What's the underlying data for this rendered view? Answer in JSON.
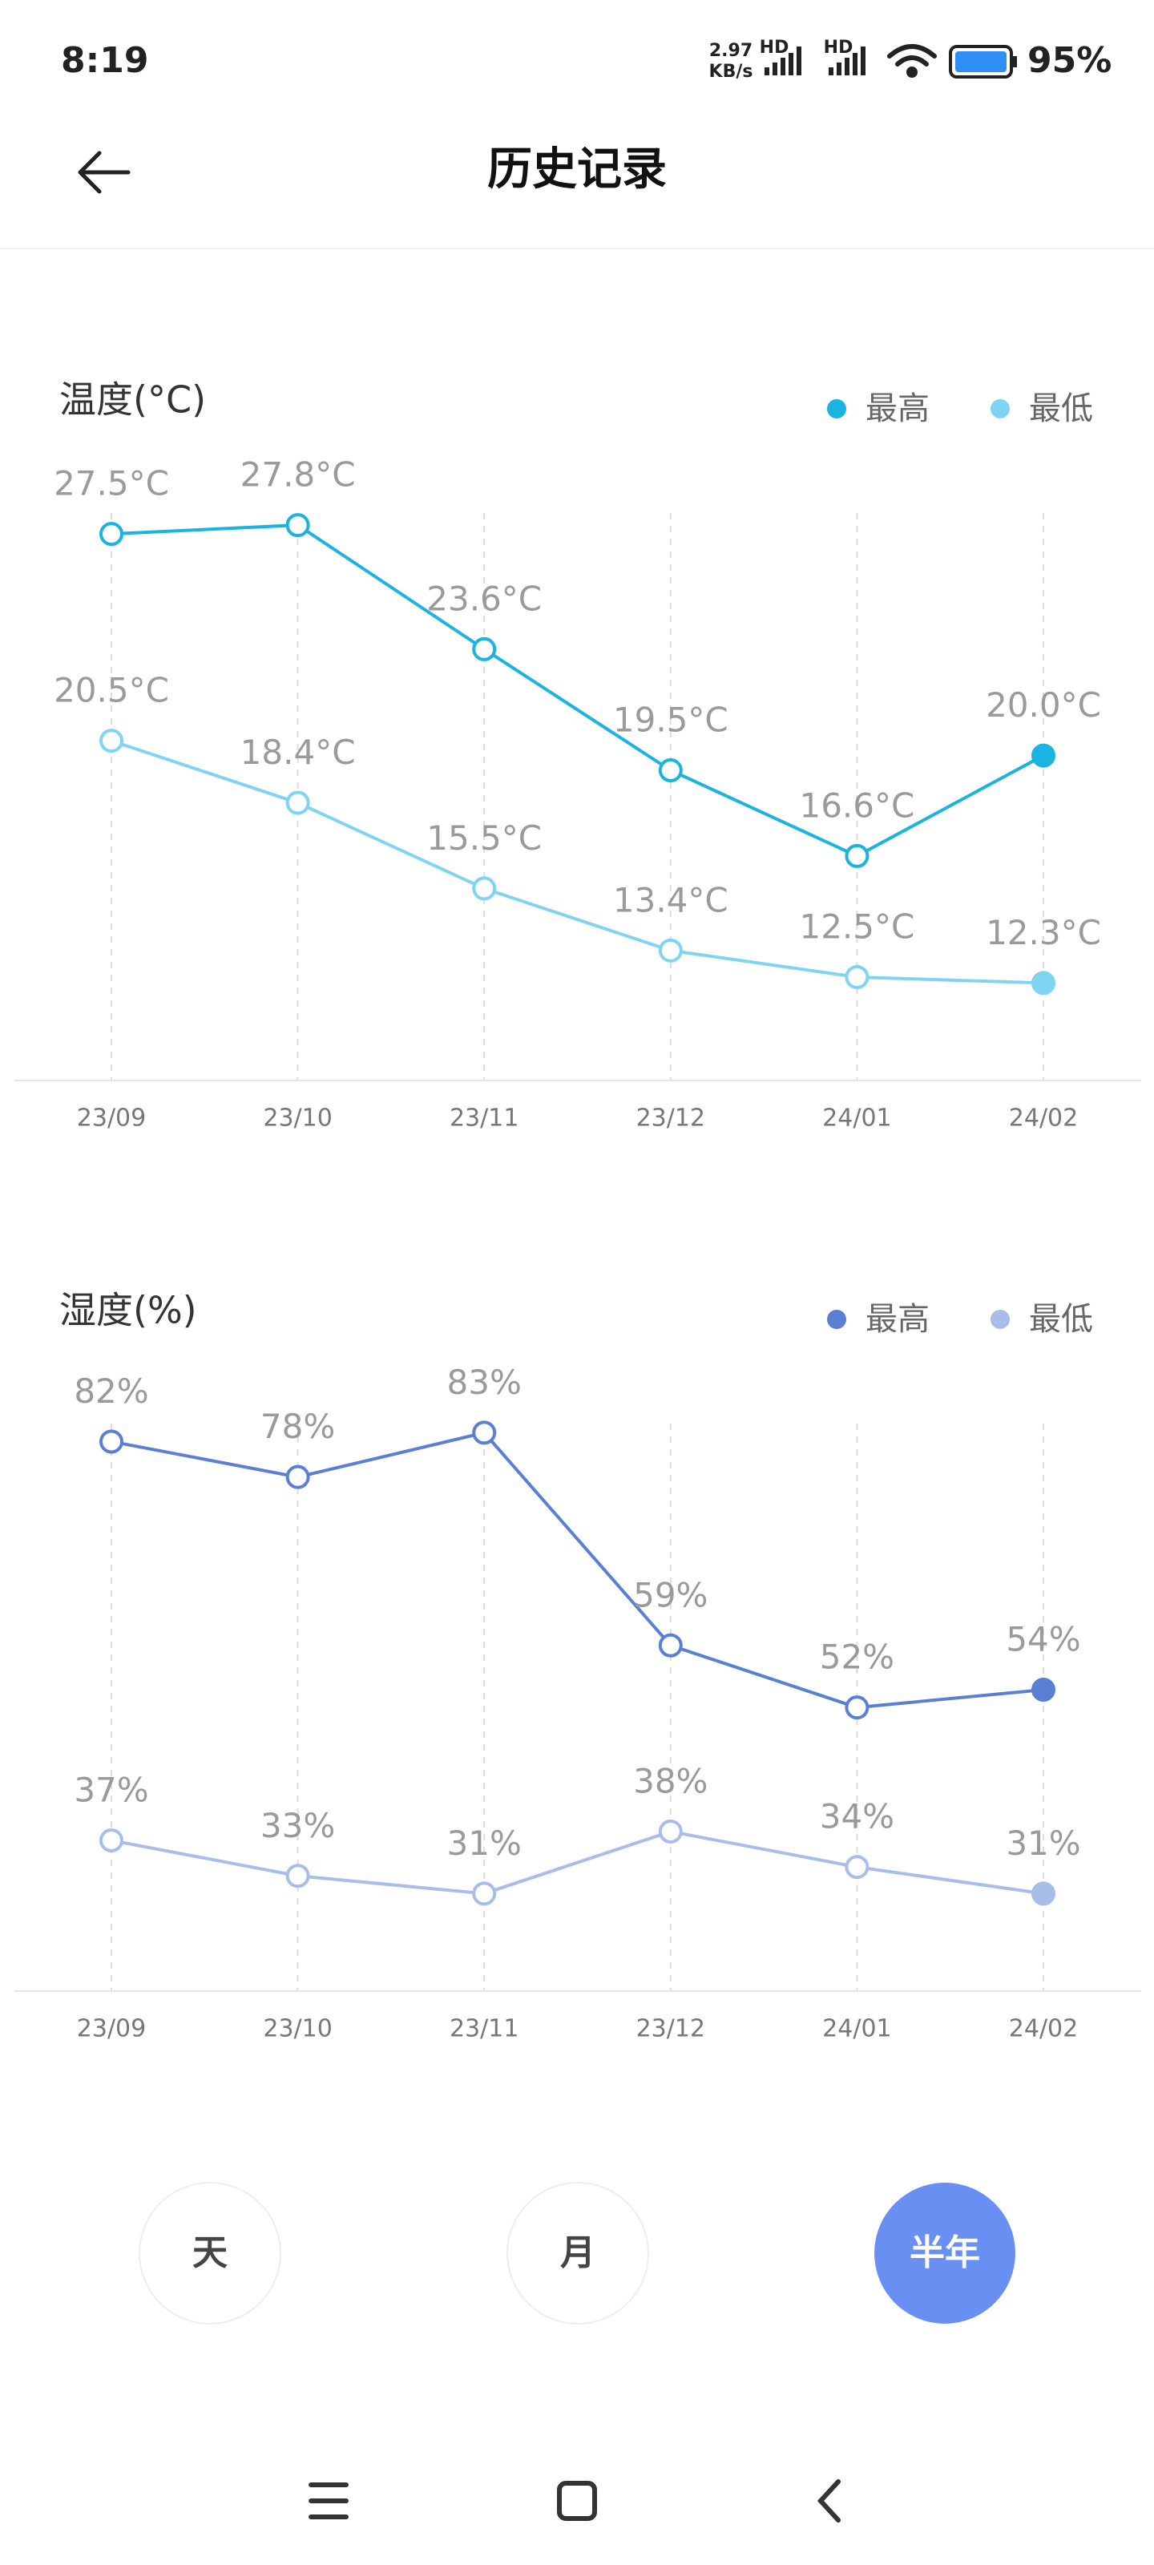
{
  "status_bar": {
    "time": "8:19",
    "network_speed_value": "2.97",
    "network_speed_unit": "KB/s",
    "signal_labels": [
      "HD",
      "HD"
    ],
    "battery": "95%"
  },
  "header": {
    "title": "历史记录"
  },
  "chart_data": [
    {
      "type": "line",
      "title": "温度(°C)",
      "categories": [
        "23/09",
        "23/10",
        "23/11",
        "23/12",
        "24/01",
        "24/02"
      ],
      "series": [
        {
          "name": "最高",
          "color": "#1bb3df",
          "values": [
            27.5,
            27.8,
            23.6,
            19.5,
            16.6,
            20.0
          ],
          "value_labels": [
            "27.5°C",
            "27.8°C",
            "23.6°C",
            "19.5°C",
            "16.6°C",
            "20.0°C"
          ]
        },
        {
          "name": "最低",
          "color": "#7fd5f1",
          "values": [
            20.5,
            18.4,
            15.5,
            13.4,
            12.5,
            12.3
          ],
          "value_labels": [
            "20.5°C",
            "18.4°C",
            "15.5°C",
            "13.4°C",
            "12.5°C",
            "12.3°C"
          ]
        }
      ],
      "ylim": [
        9,
        30
      ],
      "legend": "top-right"
    },
    {
      "type": "line",
      "title": "湿度(%)",
      "categories": [
        "23/09",
        "23/10",
        "23/11",
        "23/12",
        "24/01",
        "24/02"
      ],
      "series": [
        {
          "name": "最高",
          "color": "#5a7fd3",
          "values": [
            82,
            78,
            83,
            59,
            52,
            54
          ],
          "value_labels": [
            "82%",
            "78%",
            "83%",
            "59%",
            "52%",
            "54%"
          ]
        },
        {
          "name": "最低",
          "color": "#a8bde9",
          "values": [
            37,
            33,
            31,
            38,
            34,
            31
          ],
          "value_labels": [
            "37%",
            "33%",
            "31%",
            "38%",
            "34%",
            "31%"
          ]
        }
      ],
      "ylim": [
        20,
        90
      ],
      "legend": "top-right"
    }
  ],
  "range_options": [
    "天",
    "月",
    "半年"
  ],
  "selected_range": 2
}
